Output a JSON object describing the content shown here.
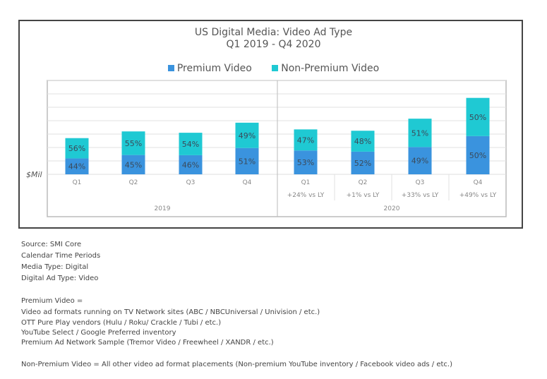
{
  "chart_data": {
    "type": "bar",
    "stacked": true,
    "title": "US Digital Media: Video Ad Type",
    "subtitle": "Q1 2019 - Q4 2020",
    "ylabel": "$Mil",
    "y_tick_labels": "none",
    "y_units_note": "unlabeled axis; totals in gridline units",
    "ylim": [
      0,
      7
    ],
    "grid": true,
    "legend_position": "top-center",
    "groups": [
      "2019",
      "2020"
    ],
    "categories": [
      "Q1",
      "Q2",
      "Q3",
      "Q4",
      "Q1",
      "Q2",
      "Q3",
      "Q4"
    ],
    "category_groups": [
      "2019",
      "2019",
      "2019",
      "2019",
      "2020",
      "2020",
      "2020",
      "2020"
    ],
    "sublabels": [
      "",
      "",
      "",
      "",
      "+24% vs LY",
      "+1% vs LY",
      "+33% vs LY",
      "+49% vs LY"
    ],
    "totals": [
      2.7,
      3.2,
      3.1,
      3.85,
      3.35,
      3.25,
      4.15,
      5.7
    ],
    "series": [
      {
        "name": "Premium Video",
        "color": "#3a93de",
        "share_labels": [
          "44%",
          "45%",
          "46%",
          "51%",
          "53%",
          "52%",
          "49%",
          "50%"
        ],
        "shares": [
          44,
          45,
          46,
          51,
          53,
          52,
          49,
          50
        ]
      },
      {
        "name": "Non-Premium Video",
        "color": "#1fc9d3",
        "share_labels": [
          "56%",
          "55%",
          "54%",
          "49%",
          "47%",
          "48%",
          "51%",
          "50%"
        ],
        "shares": [
          56,
          55,
          54,
          49,
          47,
          48,
          51,
          50
        ]
      }
    ]
  },
  "notes": {
    "lines1": [
      "Source: SMI Core",
      "Calendar Time Periods",
      "Media Type: Digital",
      "Digital Ad Type: Video"
    ],
    "lines2": [
      "Premium Video =",
      "Video ad formats running on TV Network sites (ABC / NBCUniversal / Univision / etc.)",
      "OTT Pure Play vendors (Hulu / Roku/ Crackle / Tubi / etc.)",
      "YouTube Select / Google Preferred inventory",
      "Premium Ad Network Sample (Tremor Video / Freewheel /  XANDR / etc.)"
    ],
    "line3": "Non-Premium Video = All other video ad format placements (Non-premium YouTube inventory / Facebook video ads / etc.)"
  }
}
